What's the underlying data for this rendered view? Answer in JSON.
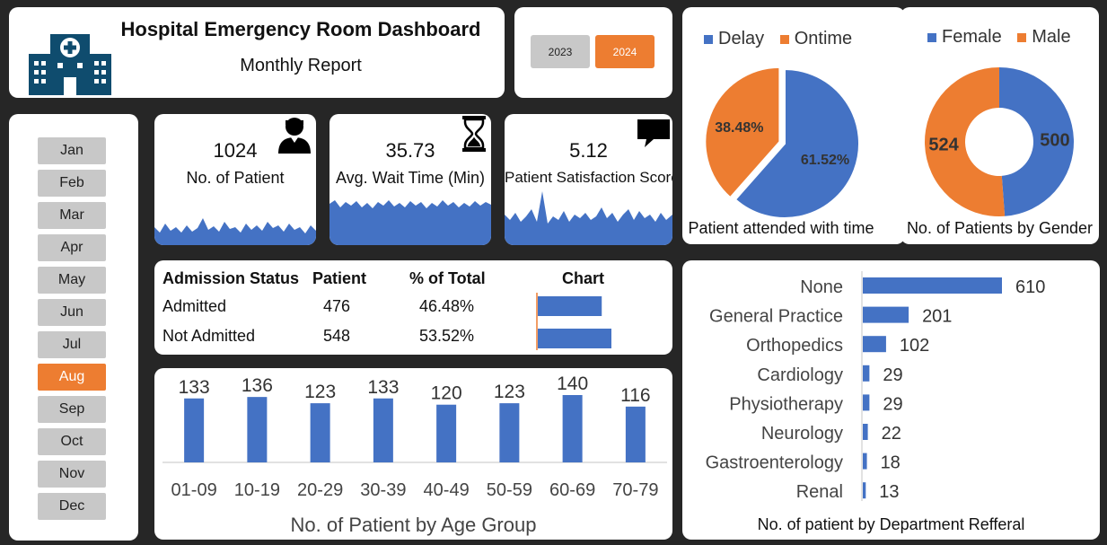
{
  "header": {
    "title": "Hospital Emergency Room Dashboard",
    "subtitle": "Monthly Report",
    "icon": "hospital-building-icon"
  },
  "years": [
    {
      "label": "2023",
      "selected": false
    },
    {
      "label": "2024",
      "selected": true
    }
  ],
  "months": [
    {
      "label": "Jan",
      "selected": false
    },
    {
      "label": "Feb",
      "selected": false
    },
    {
      "label": "Mar",
      "selected": false
    },
    {
      "label": "Apr",
      "selected": false
    },
    {
      "label": "May",
      "selected": false
    },
    {
      "label": "Jun",
      "selected": false
    },
    {
      "label": "Jul",
      "selected": false
    },
    {
      "label": "Aug",
      "selected": true
    },
    {
      "label": "Sep",
      "selected": false
    },
    {
      "label": "Oct",
      "selected": false
    },
    {
      "label": "Nov",
      "selected": false
    },
    {
      "label": "Dec",
      "selected": false
    }
  ],
  "kpis": {
    "patients": {
      "value": "1024",
      "label": "No. of Patient",
      "icon": "person-icon"
    },
    "wait_time": {
      "value": "35.73",
      "label": "Avg. Wait Time (Min)",
      "icon": "hourglass-icon"
    },
    "satisfaction": {
      "value": "5.12",
      "label": "Patient Satisfaction Score",
      "icon": "speech-bubble-icon"
    }
  },
  "admission": {
    "headers": [
      "Admission Status",
      "Patient",
      "% of Total",
      "Chart"
    ],
    "rows": [
      {
        "status": "Admitted",
        "patient": "476",
        "pct": "46.48%",
        "value": 476
      },
      {
        "status": "Not Admitted",
        "patient": "548",
        "pct": "53.52%",
        "value": 548
      }
    ]
  },
  "colors": {
    "accent": "#ed7d31",
    "blue": "#4472c4",
    "button_gray": "#c8c8c8",
    "background": "#262626"
  },
  "chart_data": [
    {
      "type": "bar",
      "title": "No. of Patient by Age Group",
      "categories": [
        "01-09",
        "10-19",
        "20-29",
        "30-39",
        "40-49",
        "50-59",
        "60-69",
        "70-79"
      ],
      "values": [
        133,
        136,
        123,
        133,
        120,
        123,
        140,
        116
      ],
      "data_labels": true,
      "grid": false
    },
    {
      "type": "pie",
      "title": "Patient attended with time",
      "categories": [
        "Delay",
        "Ontime"
      ],
      "values": [
        61.52,
        38.48
      ],
      "labels": [
        "61.52%",
        "38.48%"
      ],
      "colors": [
        "#4472c4",
        "#ed7d31"
      ],
      "legend": "top"
    },
    {
      "type": "pie",
      "variant": "donut",
      "title": "No. of Patients by Gender",
      "categories": [
        "Female",
        "Male"
      ],
      "values": [
        500,
        524
      ],
      "colors": [
        "#4472c4",
        "#ed7d31"
      ],
      "legend": "top"
    },
    {
      "type": "bar",
      "orientation": "horizontal",
      "title": "No. of patient by Department Refferal",
      "categories": [
        "None",
        "General Practice",
        "Orthopedics",
        "Cardiology",
        "Physiotherapy",
        "Neurology",
        "Gastroenterology",
        "Renal"
      ],
      "values": [
        610,
        201,
        102,
        29,
        29,
        22,
        18,
        13
      ],
      "data_labels": true
    }
  ]
}
